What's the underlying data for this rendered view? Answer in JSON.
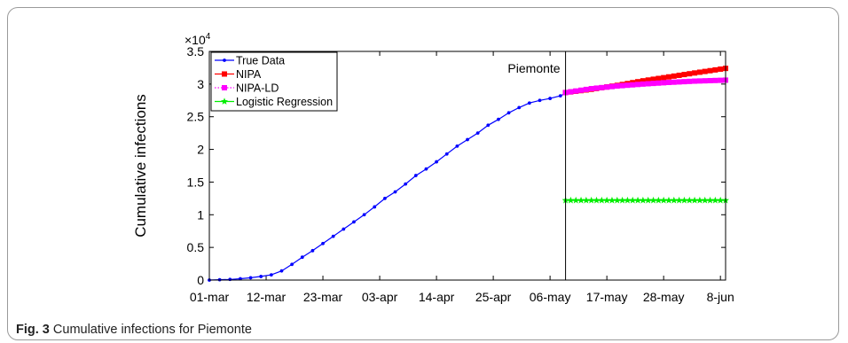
{
  "caption": {
    "label": "Fig. 3",
    "text": "Cumulative infections for Piemonte"
  },
  "chart_data": {
    "type": "line",
    "title": "",
    "ylabel": "Cumulative infections",
    "xlabel": "",
    "y_multiplier_label": "×10",
    "y_multiplier_exponent": "4",
    "ylim": [
      0,
      35000
    ],
    "yticks": [
      0,
      5000,
      10000,
      15000,
      20000,
      25000,
      30000,
      35000
    ],
    "ytick_labels": [
      "0",
      "0.5",
      "1",
      "1.5",
      "2",
      "2.5",
      "3",
      "3.5"
    ],
    "xlim": [
      "2020-03-01",
      "2020-06-09"
    ],
    "xticks": [
      "2020-03-01",
      "2020-03-12",
      "2020-03-23",
      "2020-04-03",
      "2020-04-14",
      "2020-04-25",
      "2020-05-06",
      "2020-05-17",
      "2020-05-28",
      "2020-06-08"
    ],
    "xtick_labels": [
      "01-mar",
      "12-mar",
      "23-mar",
      "03-apr",
      "14-apr",
      "25-apr",
      "06-may",
      "17-may",
      "28-may",
      "8-jun"
    ],
    "grid": false,
    "legend_position": "top-left",
    "annotation": {
      "text": "Piemonte",
      "x": "2020-05-09"
    },
    "split_line_x": "2020-05-09",
    "series": [
      {
        "name": "True Data",
        "color": "#0000ff",
        "marker": "dot",
        "line": "solid",
        "x": [
          "2020-03-01",
          "2020-03-03",
          "2020-03-05",
          "2020-03-07",
          "2020-03-09",
          "2020-03-11",
          "2020-03-13",
          "2020-03-15",
          "2020-03-17",
          "2020-03-19",
          "2020-03-21",
          "2020-03-23",
          "2020-03-25",
          "2020-03-27",
          "2020-03-29",
          "2020-03-31",
          "2020-04-02",
          "2020-04-04",
          "2020-04-06",
          "2020-04-08",
          "2020-04-10",
          "2020-04-12",
          "2020-04-14",
          "2020-04-16",
          "2020-04-18",
          "2020-04-20",
          "2020-04-22",
          "2020-04-24",
          "2020-04-26",
          "2020-04-28",
          "2020-04-30",
          "2020-05-02",
          "2020-05-04",
          "2020-05-06",
          "2020-05-08",
          "2020-05-09"
        ],
        "y": [
          0,
          50,
          100,
          200,
          350,
          550,
          800,
          1400,
          2400,
          3500,
          4500,
          5600,
          6700,
          7800,
          8900,
          10000,
          11200,
          12500,
          13500,
          14700,
          16000,
          17000,
          18100,
          19300,
          20500,
          21500,
          22500,
          23700,
          24600,
          25600,
          26400,
          27100,
          27500,
          27800,
          28200,
          28600
        ]
      },
      {
        "name": "NIPA",
        "color": "#ff0000",
        "marker": "square",
        "line": "solid",
        "x": [
          "2020-05-09",
          "2020-05-14",
          "2020-05-19",
          "2020-05-24",
          "2020-05-29",
          "2020-06-03",
          "2020-06-09"
        ],
        "y": [
          28700,
          29200,
          29800,
          30500,
          31100,
          31700,
          32400
        ]
      },
      {
        "name": "NIPA-LD",
        "color": "#ff00ff",
        "marker": "square",
        "line": "dotted",
        "x": [
          "2020-05-09",
          "2020-05-14",
          "2020-05-19",
          "2020-05-24",
          "2020-05-29",
          "2020-06-03",
          "2020-06-09"
        ],
        "y": [
          28700,
          29300,
          29700,
          30000,
          30250,
          30450,
          30600
        ]
      },
      {
        "name": "Logistic Regression",
        "color": "#00ee00",
        "marker": "star",
        "line": "solid",
        "x": [
          "2020-05-09",
          "2020-06-09"
        ],
        "y": [
          12200,
          12200
        ]
      }
    ]
  }
}
